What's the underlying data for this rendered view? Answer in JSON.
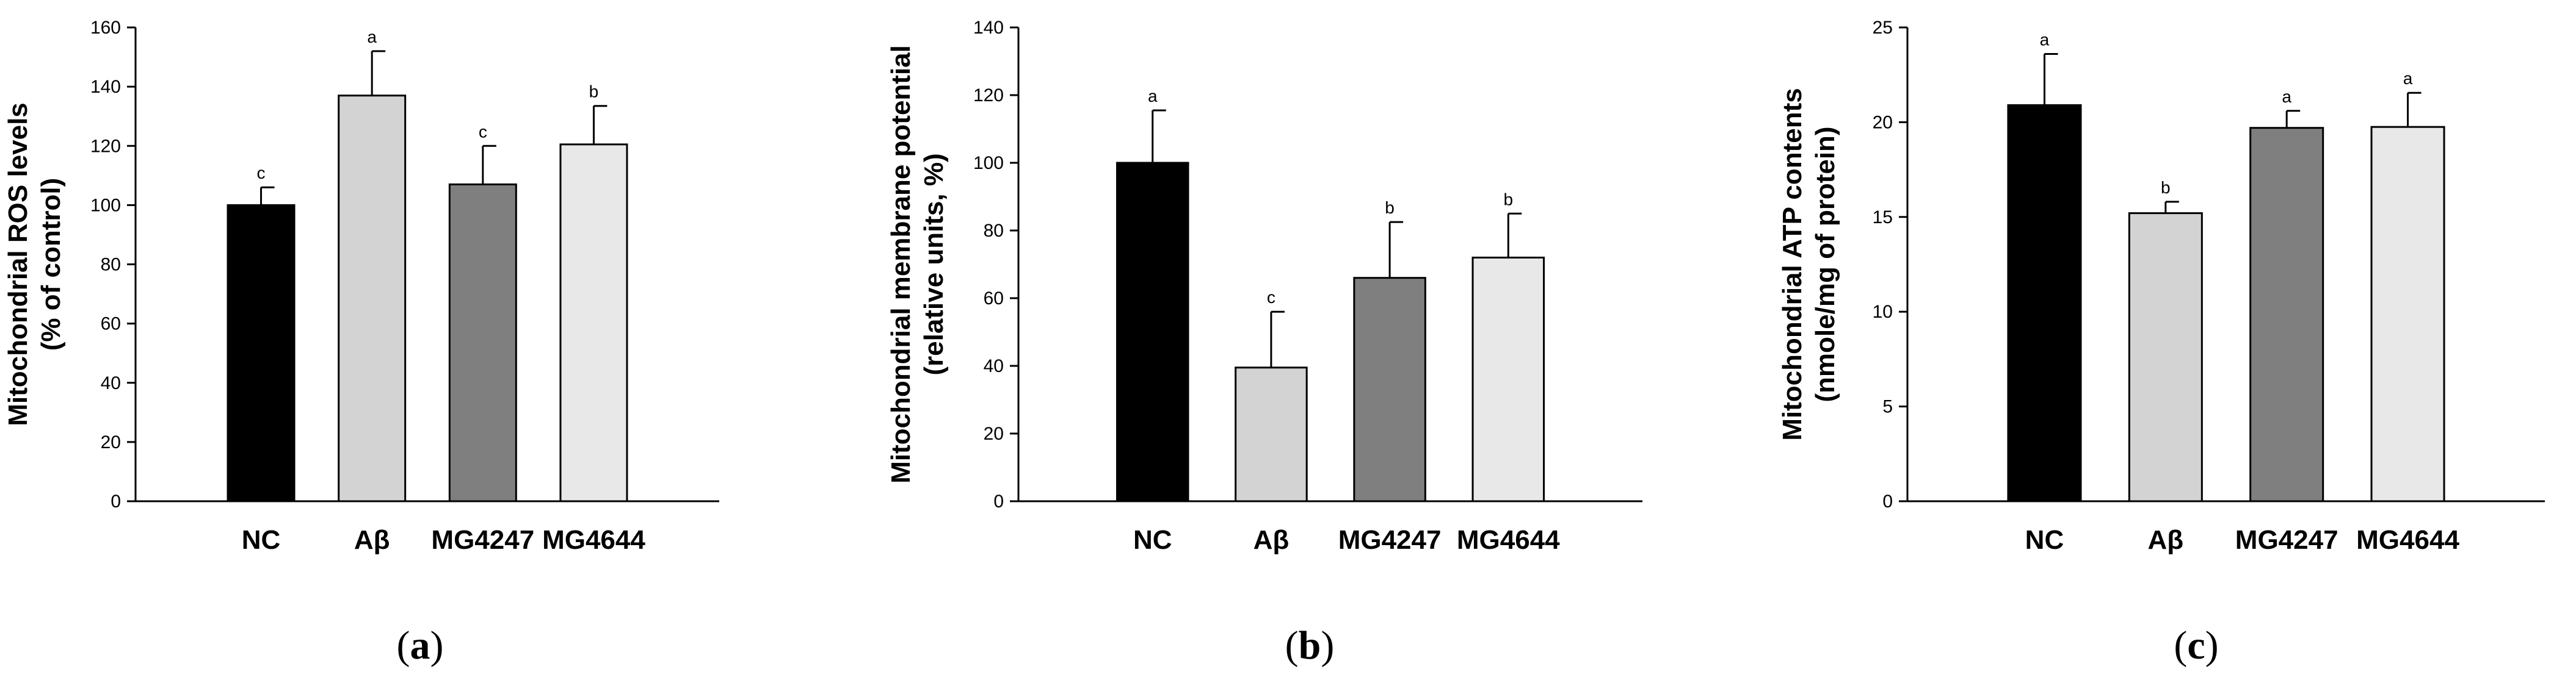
{
  "chart_data": [
    {
      "type": "bar",
      "panel_label": "a",
      "title": "",
      "ylabel_lines": [
        "Mitochondrial ROS levels",
        "(% of control)"
      ],
      "xlabel": "",
      "categories": [
        "NC",
        "Aβ",
        "MG4247",
        "MG4644"
      ],
      "values": [
        100,
        137,
        107,
        120.5
      ],
      "errors": [
        6,
        15,
        13,
        13
      ],
      "significance": [
        "c",
        "a",
        "c",
        "b"
      ],
      "bar_colors": [
        "#000000",
        "#d3d3d3",
        "#7f7f7f",
        "#e8e8e8"
      ],
      "ylim": [
        0,
        160
      ],
      "yticks": [
        0,
        20,
        40,
        60,
        80,
        100,
        120,
        140,
        160
      ]
    },
    {
      "type": "bar",
      "panel_label": "b",
      "title": "",
      "ylabel_lines": [
        "Mitochondrial membrane potential",
        "(relative units, %)"
      ],
      "xlabel": "",
      "categories": [
        "NC",
        "Aβ",
        "MG4247",
        "MG4644"
      ],
      "values": [
        100,
        39.5,
        66,
        72
      ],
      "errors": [
        15.5,
        16.5,
        16.5,
        13
      ],
      "significance": [
        "a",
        "c",
        "b",
        "b"
      ],
      "bar_colors": [
        "#000000",
        "#d3d3d3",
        "#7f7f7f",
        "#e8e8e8"
      ],
      "ylim": [
        0,
        140
      ],
      "yticks": [
        0,
        20,
        40,
        60,
        80,
        100,
        120,
        140
      ]
    },
    {
      "type": "bar",
      "panel_label": "c",
      "title": "",
      "ylabel_lines": [
        "Mitochondrial ATP contents",
        "(nmole/mg of protein)"
      ],
      "xlabel": "",
      "categories": [
        "NC",
        "Aβ",
        "MG4247",
        "MG4644"
      ],
      "values": [
        20.9,
        15.2,
        19.7,
        19.75
      ],
      "errors": [
        2.7,
        0.6,
        0.9,
        1.8
      ],
      "significance": [
        "a",
        "b",
        "a",
        "a"
      ],
      "bar_colors": [
        "#000000",
        "#d3d3d3",
        "#7f7f7f",
        "#e8e8e8"
      ],
      "ylim": [
        0,
        25
      ],
      "yticks": [
        0,
        5,
        10,
        15,
        20,
        25
      ]
    }
  ]
}
